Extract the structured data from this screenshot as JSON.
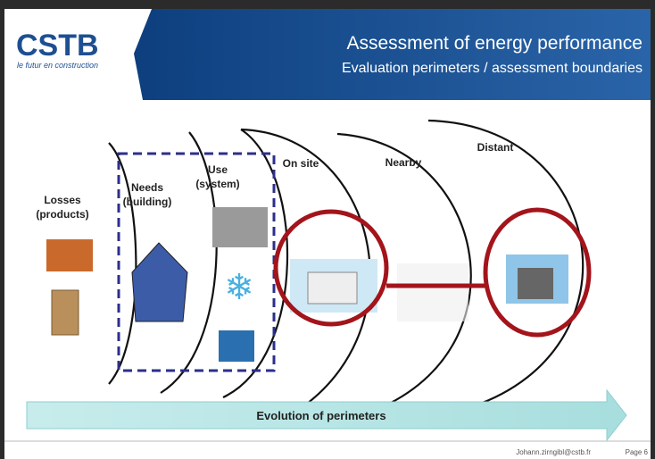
{
  "header": {
    "logo": "CSTB",
    "tagline": "le futur en construction",
    "title": "Assessment of energy performance",
    "subtitle": "Evaluation perimeters / assessment boundaries"
  },
  "zones": [
    {
      "label_lines": [
        "Losses",
        "(products)"
      ]
    },
    {
      "label_lines": [
        "Needs",
        "(building)"
      ]
    },
    {
      "label_lines": [
        "Use",
        "(system)"
      ]
    },
    {
      "label_lines": [
        "On site"
      ]
    },
    {
      "label_lines": [
        "Nearby"
      ]
    },
    {
      "label_lines": [
        "Distant"
      ]
    }
  ],
  "arrow": {
    "label": "Evolution of perimeters"
  },
  "footer": {
    "email": "Johann.zirngibl@cstb.fr",
    "page": "Page 6"
  }
}
